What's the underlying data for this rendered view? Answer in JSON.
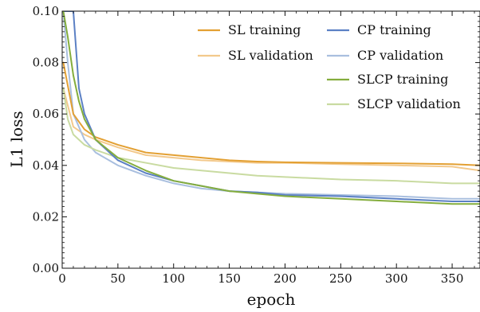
{
  "chart_data": {
    "type": "line",
    "title": "",
    "xlabel": "epoch",
    "ylabel": "L1 loss",
    "xlim": [
      0,
      375
    ],
    "ylim": [
      0,
      0.1
    ],
    "x_ticks": [
      0,
      50,
      100,
      150,
      200,
      250,
      300,
      350
    ],
    "y_ticks": [
      0,
      0.02,
      0.04,
      0.06,
      0.08,
      0.1
    ],
    "x_tick_labels": [
      "0",
      "50",
      "100",
      "150",
      "200",
      "250",
      "300",
      "350"
    ],
    "y_tick_labels": [
      "0.00",
      "0.02",
      "0.04",
      "0.06",
      "0.08",
      "0.10"
    ],
    "grid": false,
    "legend_position": "top-right",
    "legend_columns": 2,
    "series": [
      {
        "name": "SL training",
        "color": "#e3a033",
        "x": [
          1,
          10,
          20,
          30,
          50,
          75,
          100,
          125,
          150,
          175,
          200,
          250,
          300,
          350,
          375
        ],
        "y": [
          0.08,
          0.06,
          0.054,
          0.051,
          0.048,
          0.045,
          0.044,
          0.043,
          0.042,
          0.0415,
          0.0412,
          0.041,
          0.0408,
          0.0405,
          0.04
        ]
      },
      {
        "name": "SL validation",
        "color": "#f3c98c",
        "x": [
          1,
          10,
          20,
          30,
          50,
          75,
          100,
          125,
          150,
          175,
          200,
          250,
          300,
          350,
          375
        ],
        "y": [
          0.07,
          0.055,
          0.052,
          0.05,
          0.047,
          0.044,
          0.043,
          0.042,
          0.0415,
          0.041,
          0.041,
          0.0405,
          0.04,
          0.0395,
          0.038
        ]
      },
      {
        "name": "CP training",
        "color": "#5b80c4",
        "x": [
          1,
          5,
          10,
          15,
          20,
          30,
          50,
          75,
          100,
          125,
          150,
          175,
          200,
          250,
          300,
          350,
          375
        ],
        "y": [
          0.1,
          0.1,
          0.1,
          0.07,
          0.06,
          0.05,
          0.042,
          0.037,
          0.034,
          0.032,
          0.03,
          0.0295,
          0.0285,
          0.028,
          0.027,
          0.026,
          0.026
        ]
      },
      {
        "name": "CP validation",
        "color": "#a9bfdf",
        "x": [
          1,
          5,
          10,
          15,
          20,
          30,
          50,
          75,
          100,
          125,
          150,
          175,
          200,
          250,
          300,
          350,
          375
        ],
        "y": [
          0.1,
          0.08,
          0.06,
          0.055,
          0.05,
          0.045,
          0.04,
          0.036,
          0.033,
          0.031,
          0.03,
          0.0295,
          0.029,
          0.0285,
          0.028,
          0.027,
          0.027
        ]
      },
      {
        "name": "SLCP training",
        "color": "#84ad3d",
        "x": [
          1,
          5,
          10,
          15,
          20,
          30,
          50,
          75,
          100,
          125,
          150,
          175,
          200,
          250,
          300,
          350,
          375
        ],
        "y": [
          0.1,
          0.09,
          0.075,
          0.065,
          0.058,
          0.05,
          0.043,
          0.038,
          0.034,
          0.032,
          0.03,
          0.029,
          0.028,
          0.027,
          0.026,
          0.025,
          0.025
        ]
      },
      {
        "name": "SLCP validation",
        "color": "#c9dba1",
        "x": [
          1,
          5,
          10,
          15,
          20,
          30,
          50,
          75,
          100,
          125,
          150,
          175,
          200,
          250,
          300,
          350,
          375
        ],
        "y": [
          0.07,
          0.058,
          0.052,
          0.05,
          0.048,
          0.046,
          0.043,
          0.041,
          0.039,
          0.038,
          0.037,
          0.036,
          0.0355,
          0.0345,
          0.034,
          0.033,
          0.033
        ]
      }
    ]
  }
}
